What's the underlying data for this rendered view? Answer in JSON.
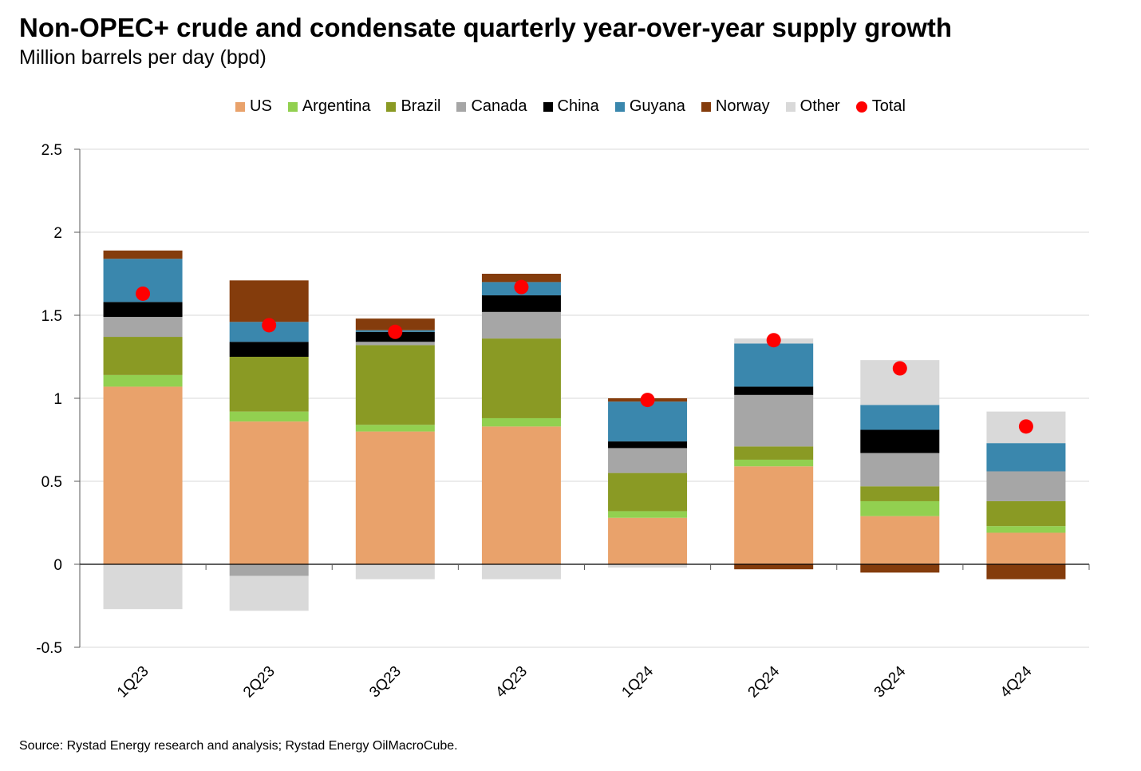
{
  "chart_data": {
    "type": "bar",
    "stacked": true,
    "title": "Non-OPEC+ crude and condensate quarterly year-over-year supply growth",
    "subtitle": "Million barrels per day (bpd)",
    "source": "Source: Rystad Energy research and analysis; Rystad Energy OilMacroCube.",
    "categories": [
      "1Q23",
      "2Q23",
      "3Q23",
      "4Q23",
      "1Q24",
      "2Q24",
      "3Q24",
      "4Q24"
    ],
    "ylim": [
      -0.5,
      2.5
    ],
    "yticks": [
      -0.5,
      0,
      0.5,
      1,
      1.5,
      2,
      2.5
    ],
    "ytick_labels": [
      "-0.5",
      "0",
      "0.5",
      "1",
      "1.5",
      "2",
      "2.5"
    ],
    "grid": true,
    "legend_position": "top",
    "series": [
      {
        "name": "US",
        "color": "#E9A26B",
        "values": [
          1.07,
          0.86,
          0.8,
          0.83,
          0.28,
          0.59,
          0.29,
          0.19
        ]
      },
      {
        "name": "Argentina",
        "color": "#92D050",
        "values": [
          0.07,
          0.06,
          0.04,
          0.05,
          0.04,
          0.04,
          0.09,
          0.04
        ]
      },
      {
        "name": "Brazil",
        "color": "#8A9A24",
        "values": [
          0.23,
          0.33,
          0.48,
          0.48,
          0.23,
          0.08,
          0.09,
          0.15
        ]
      },
      {
        "name": "Canada",
        "color": "#A6A6A6",
        "values": [
          0.12,
          -0.07,
          0.02,
          0.16,
          0.15,
          0.31,
          0.2,
          0.18
        ]
      },
      {
        "name": "China",
        "color": "#000000",
        "values": [
          0.09,
          0.09,
          0.06,
          0.1,
          0.04,
          0.05,
          0.14,
          0.0
        ]
      },
      {
        "name": "Guyana",
        "color": "#3A87AD",
        "values": [
          0.26,
          0.12,
          0.01,
          0.08,
          0.24,
          0.26,
          0.15,
          0.17
        ]
      },
      {
        "name": "Norway",
        "color": "#843C0C",
        "values": [
          0.05,
          0.25,
          0.07,
          0.05,
          0.02,
          -0.03,
          -0.05,
          -0.09
        ]
      },
      {
        "name": "Other",
        "color": "#D9D9D9",
        "values": [
          -0.27,
          -0.21,
          -0.09,
          -0.09,
          -0.02,
          0.03,
          0.27,
          0.19
        ]
      }
    ],
    "total": {
      "name": "Total",
      "color": "#FF0000",
      "values": [
        1.63,
        1.44,
        1.4,
        1.67,
        0.99,
        1.35,
        1.18,
        0.83
      ]
    }
  }
}
